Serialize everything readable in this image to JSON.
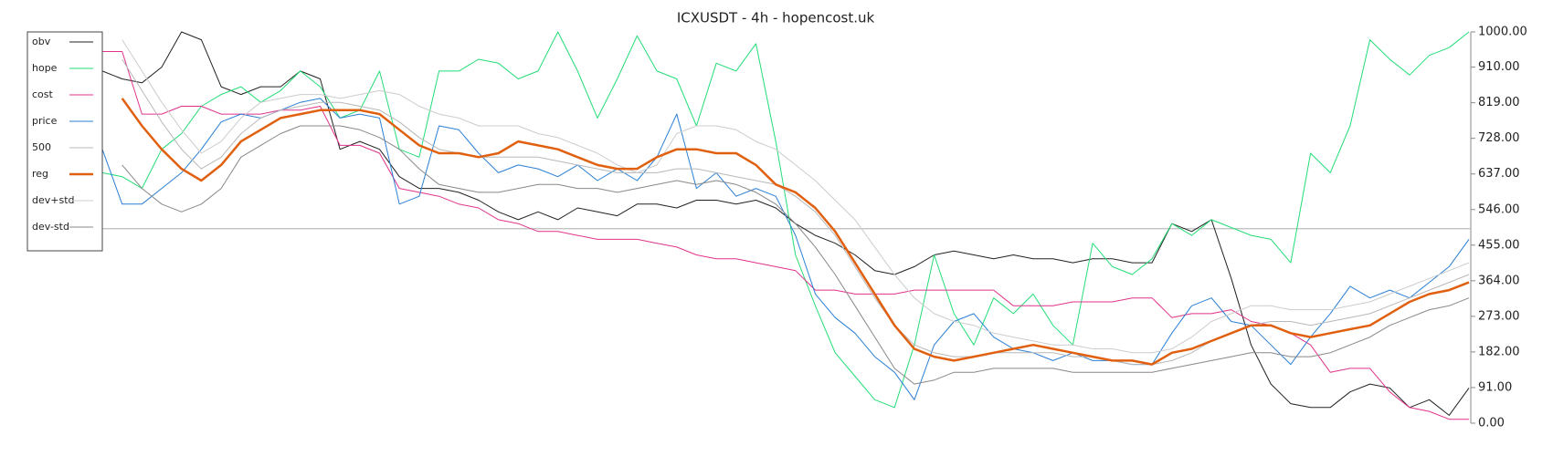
{
  "chart_data": {
    "type": "line",
    "title": "ICXUSDT - 4h - hopencost.uk",
    "ylim": [
      0,
      1000
    ],
    "yticks": [
      {
        "value": 0,
        "label": "0.00"
      },
      {
        "value": 91,
        "label": "91.00"
      },
      {
        "value": 182,
        "label": "182.00"
      },
      {
        "value": 273,
        "label": "273.00"
      },
      {
        "value": 364,
        "label": "364.00"
      },
      {
        "value": 455,
        "label": "455.00"
      },
      {
        "value": 546,
        "label": "546.00"
      },
      {
        "value": 637,
        "label": "637.00"
      },
      {
        "value": 728,
        "label": "728.00"
      },
      {
        "value": 819,
        "label": "819.00"
      },
      {
        "value": 910,
        "label": "910.00"
      },
      {
        "value": 1000,
        "label": "1000.00"
      }
    ],
    "reference_line": 497,
    "legend": "top-left",
    "series": [
      {
        "name": "obv",
        "color": "#222222",
        "width": 1,
        "values": [
          900,
          880,
          870,
          910,
          1000,
          980,
          860,
          840,
          860,
          860,
          900,
          880,
          700,
          720,
          700,
          630,
          600,
          600,
          590,
          570,
          540,
          520,
          540,
          520,
          550,
          540,
          530,
          560,
          560,
          550,
          570,
          570,
          560,
          570,
          550,
          510,
          480,
          460,
          430,
          390,
          380,
          400,
          430,
          440,
          430,
          420,
          430,
          420,
          420,
          410,
          420,
          420,
          410,
          410,
          510,
          490,
          520,
          370,
          200,
          100,
          50,
          40,
          40,
          80,
          100,
          90,
          40,
          60,
          20,
          90
        ]
      },
      {
        "name": "hope",
        "color": "#22dd77",
        "width": 1,
        "values": [
          640,
          630,
          600,
          700,
          740,
          810,
          840,
          860,
          820,
          850,
          900,
          860,
          780,
          800,
          900,
          700,
          680,
          900,
          900,
          930,
          920,
          880,
          900,
          1000,
          900,
          780,
          880,
          990,
          900,
          880,
          760,
          920,
          900,
          970,
          720,
          430,
          300,
          180,
          120,
          60,
          40,
          200,
          430,
          280,
          200,
          320,
          280,
          330,
          250,
          200,
          460,
          400,
          380,
          420,
          510,
          480,
          520,
          500,
          480,
          470,
          410,
          690,
          640,
          760,
          980,
          930,
          890,
          940,
          960,
          1000
        ]
      },
      {
        "name": "cost",
        "color": "#e0338a",
        "width": 1,
        "values": [
          950,
          950,
          790,
          790,
          810,
          810,
          790,
          790,
          790,
          800,
          800,
          810,
          710,
          710,
          690,
          600,
          590,
          580,
          560,
          550,
          520,
          510,
          490,
          490,
          480,
          470,
          470,
          470,
          460,
          450,
          430,
          420,
          420,
          410,
          400,
          390,
          340,
          340,
          330,
          330,
          330,
          340,
          340,
          340,
          340,
          340,
          300,
          300,
          300,
          310,
          310,
          310,
          320,
          320,
          270,
          280,
          280,
          290,
          260,
          250,
          230,
          200,
          130,
          140,
          140,
          80,
          40,
          30,
          10,
          10
        ]
      },
      {
        "name": "price",
        "color": "#2a7fd4",
        "width": 1,
        "values": [
          700,
          560,
          560,
          600,
          640,
          700,
          770,
          790,
          780,
          800,
          820,
          830,
          780,
          790,
          780,
          560,
          580,
          760,
          750,
          690,
          640,
          660,
          650,
          630,
          660,
          620,
          650,
          620,
          680,
          790,
          600,
          640,
          580,
          600,
          580,
          480,
          330,
          270,
          230,
          170,
          130,
          60,
          200,
          260,
          280,
          220,
          190,
          180,
          160,
          180,
          160,
          160,
          150,
          150,
          230,
          300,
          320,
          260,
          250,
          200,
          150,
          220,
          280,
          350,
          320,
          340,
          320,
          360,
          400,
          470
        ]
      },
      {
        "name": "500",
        "color": "#b8b8b8",
        "width": 1,
        "values": [
          null,
          930,
          850,
          770,
          700,
          650,
          680,
          740,
          780,
          800,
          810,
          820,
          820,
          810,
          800,
          770,
          730,
          700,
          690,
          680,
          680,
          680,
          680,
          670,
          660,
          650,
          640,
          640,
          640,
          650,
          650,
          640,
          630,
          620,
          610,
          580,
          540,
          480,
          400,
          320,
          250,
          200,
          180,
          170,
          170,
          180,
          180,
          180,
          180,
          170,
          170,
          160,
          150,
          150,
          160,
          180,
          210,
          230,
          250,
          260,
          260,
          250,
          260,
          270,
          280,
          300,
          320,
          340,
          360,
          380
        ]
      },
      {
        "name": "reg",
        "color": "#e06010",
        "width": 2.5,
        "values": [
          null,
          830,
          760,
          700,
          650,
          620,
          660,
          720,
          750,
          780,
          790,
          800,
          800,
          800,
          790,
          750,
          710,
          690,
          690,
          680,
          690,
          720,
          710,
          700,
          680,
          660,
          650,
          650,
          680,
          700,
          700,
          690,
          690,
          660,
          610,
          590,
          550,
          490,
          410,
          330,
          250,
          190,
          170,
          160,
          170,
          180,
          190,
          200,
          190,
          180,
          170,
          160,
          160,
          150,
          180,
          190,
          210,
          230,
          250,
          250,
          230,
          220,
          230,
          240,
          250,
          280,
          310,
          330,
          340,
          360
        ]
      },
      {
        "name": "dev+std",
        "color": "#cccccc",
        "width": 1,
        "values": [
          null,
          980,
          900,
          820,
          750,
          690,
          720,
          780,
          820,
          830,
          840,
          840,
          830,
          840,
          850,
          840,
          810,
          790,
          780,
          760,
          760,
          760,
          740,
          730,
          710,
          690,
          660,
          640,
          660,
          740,
          760,
          760,
          750,
          720,
          700,
          660,
          620,
          570,
          520,
          450,
          380,
          320,
          280,
          260,
          250,
          230,
          220,
          210,
          200,
          200,
          190,
          190,
          180,
          180,
          190,
          220,
          260,
          280,
          300,
          300,
          290,
          290,
          290,
          300,
          310,
          330,
          350,
          370,
          390,
          410
        ]
      },
      {
        "name": "dev-std",
        "color": "#888888",
        "width": 1,
        "values": [
          null,
          660,
          600,
          560,
          540,
          560,
          600,
          680,
          710,
          740,
          760,
          760,
          760,
          750,
          730,
          700,
          650,
          610,
          600,
          590,
          590,
          600,
          610,
          610,
          600,
          600,
          590,
          600,
          610,
          620,
          610,
          620,
          610,
          590,
          560,
          510,
          450,
          380,
          300,
          220,
          140,
          100,
          110,
          130,
          130,
          140,
          140,
          140,
          140,
          130,
          130,
          130,
          130,
          130,
          140,
          150,
          160,
          170,
          180,
          180,
          170,
          170,
          180,
          200,
          220,
          250,
          270,
          290,
          300,
          320
        ]
      }
    ]
  }
}
